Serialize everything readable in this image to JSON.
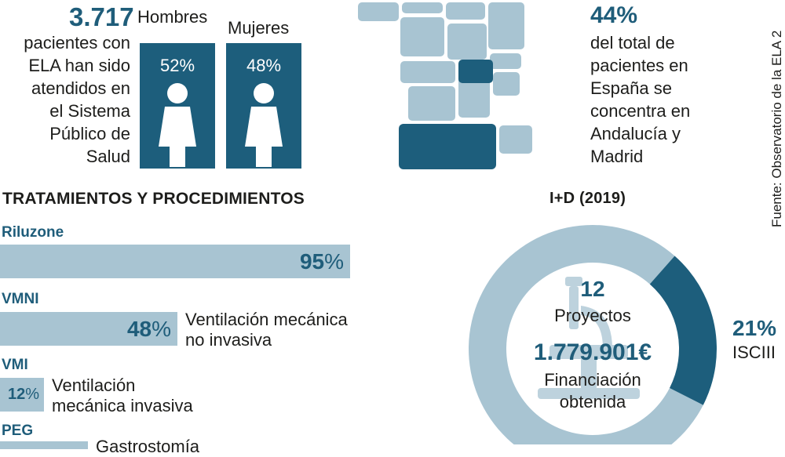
{
  "patients": {
    "number": "3.717",
    "description_lines": [
      "pacientes con",
      "ELA han sido",
      "atendidos en",
      "el Sistema",
      "Público de",
      "Salud"
    ]
  },
  "gender": {
    "men_label": "Hombres",
    "men_pct": "52%",
    "women_label": "Mujeres",
    "women_pct": "48%"
  },
  "concentration": {
    "pct": "44%",
    "description_lines": [
      "del total de",
      "pacientes en",
      "España se",
      "concentra en",
      "Andalucía y",
      "Madrid"
    ]
  },
  "source": "Fuente: Observatorio de la ELA 2",
  "treatments": {
    "title": "TRATAMIENTOS Y PROCEDIMIENTOS",
    "items": [
      {
        "name": "Riluzone",
        "value": "95",
        "unit": "%",
        "description": ""
      },
      {
        "name": "VMNI",
        "value": "48",
        "unit": "%",
        "description_lines": [
          "Ventilación mecánica",
          "no invasiva"
        ]
      },
      {
        "name": "VMI",
        "value": "12",
        "unit": "%",
        "description_lines": [
          "Ventilación",
          "mecánica invasiva"
        ]
      },
      {
        "name": "PEG",
        "value": "",
        "unit": "",
        "description_lines": [
          "Gastrostomía"
        ]
      }
    ]
  },
  "rd": {
    "title": "I+D (2019)",
    "projects_number": "12",
    "projects_label": "Proyectos",
    "funding_amount": "1.779.901€",
    "funding_label_lines": [
      "Financiación",
      "obtenida"
    ],
    "isciii_pct": "21%",
    "isciii_label": "ISCIII"
  },
  "chart_data": [
    {
      "type": "bar",
      "title": "TRATAMIENTOS Y PROCEDIMIENTOS",
      "categories": [
        "Riluzone",
        "VMNI",
        "VMI",
        "PEG"
      ],
      "values": [
        95,
        48,
        12,
        null
      ],
      "unit": "%"
    },
    {
      "type": "pie",
      "title": "I+D (2019)",
      "slices": [
        {
          "label": "ISCIII",
          "value": 21
        },
        {
          "label": "",
          "value": 79
        }
      ]
    },
    {
      "type": "bar",
      "categories": [
        "Hombres",
        "Mujeres"
      ],
      "values": [
        52,
        48
      ],
      "unit": "%"
    }
  ],
  "colors": {
    "dark": "#1d5e7c",
    "light": "#a8c4d2",
    "text_accent": "#1f5d7a"
  },
  "icons": {
    "gender_icon": "person-icon",
    "map_icon": "spain-regions-map",
    "center_icon": "microscope-icon"
  }
}
